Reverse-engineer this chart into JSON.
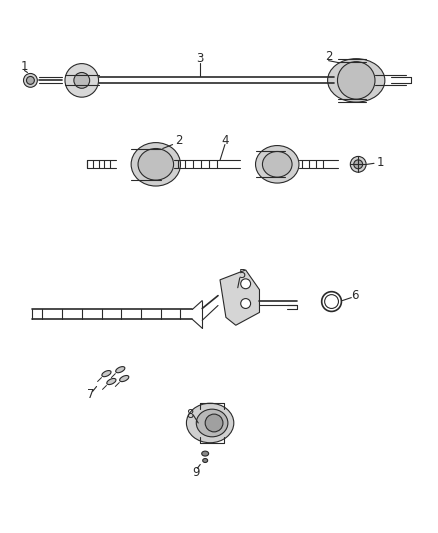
{
  "background_color": "#ffffff",
  "figsize": [
    4.38,
    5.33
  ],
  "dpi": 100,
  "line_color": "#2a2a2a",
  "fill_color": "#e8e8e8",
  "label_fontsize": 8.5
}
